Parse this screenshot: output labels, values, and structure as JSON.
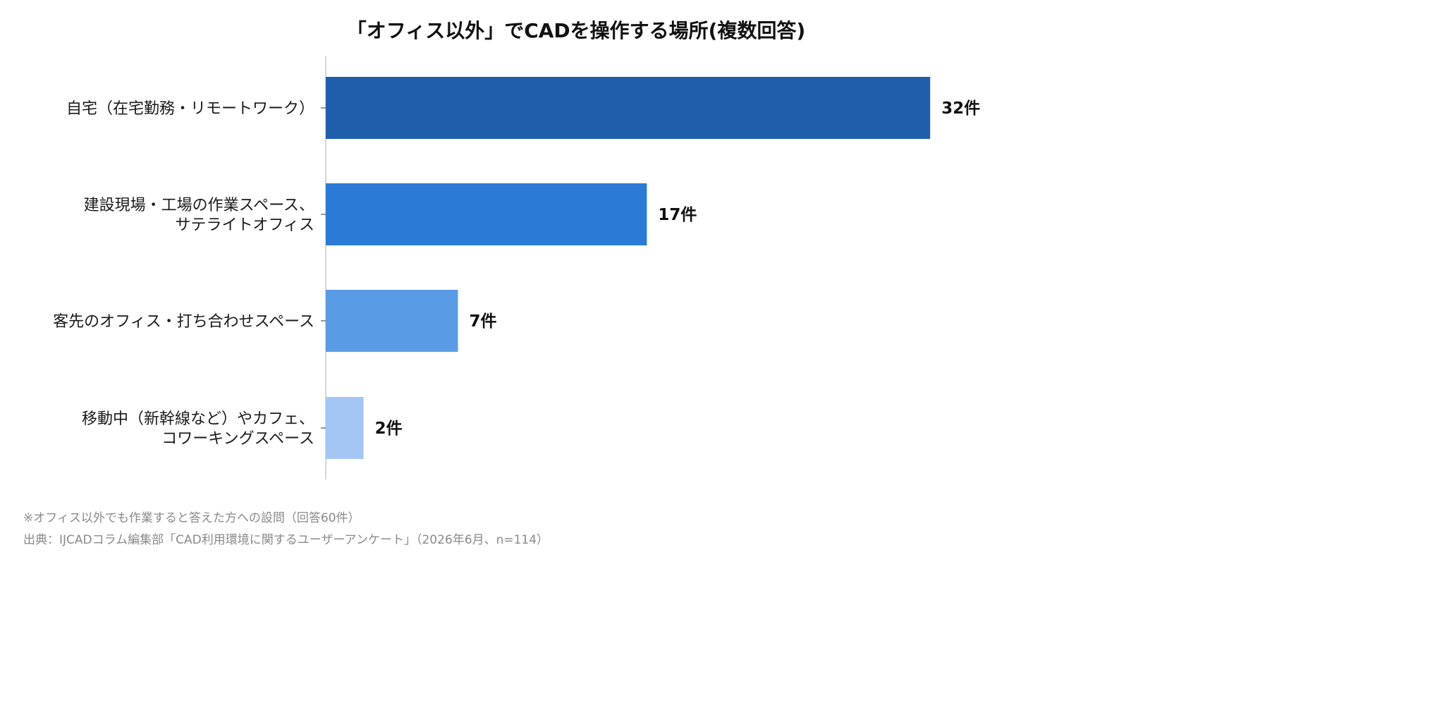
{
  "chart_data": {
    "type": "bar",
    "orientation": "horizontal",
    "title": "「オフィス以外」でCADを操作する場所(複数回答)",
    "categories": [
      [
        "自宅（在宅勤務・リモートワーク）"
      ],
      [
        "建設現場・工場の作業スペース、",
        "サテライトオフィス"
      ],
      [
        "客先のオフィス・打ち合わせスペース"
      ],
      [
        "移動中（新幹線など）やカフェ、",
        "コワーキングスペース"
      ]
    ],
    "values": [
      32,
      17,
      7,
      2
    ],
    "value_labels": [
      "32件",
      "17件",
      "7件",
      "2件"
    ],
    "colors": [
      "#1f5eab",
      "#2a7ad6",
      "#5a9be6",
      "#a4c6f4"
    ],
    "xlim": [
      0,
      33
    ],
    "grid": false
  },
  "notes": {
    "note1": "※オフィス以外でも作業すると答えた方への設問（回答60件）",
    "note2": "出典：IJCADコラム編集部「CAD利用環境に関するユーザーアンケート」（2026年6月、n=114）"
  }
}
